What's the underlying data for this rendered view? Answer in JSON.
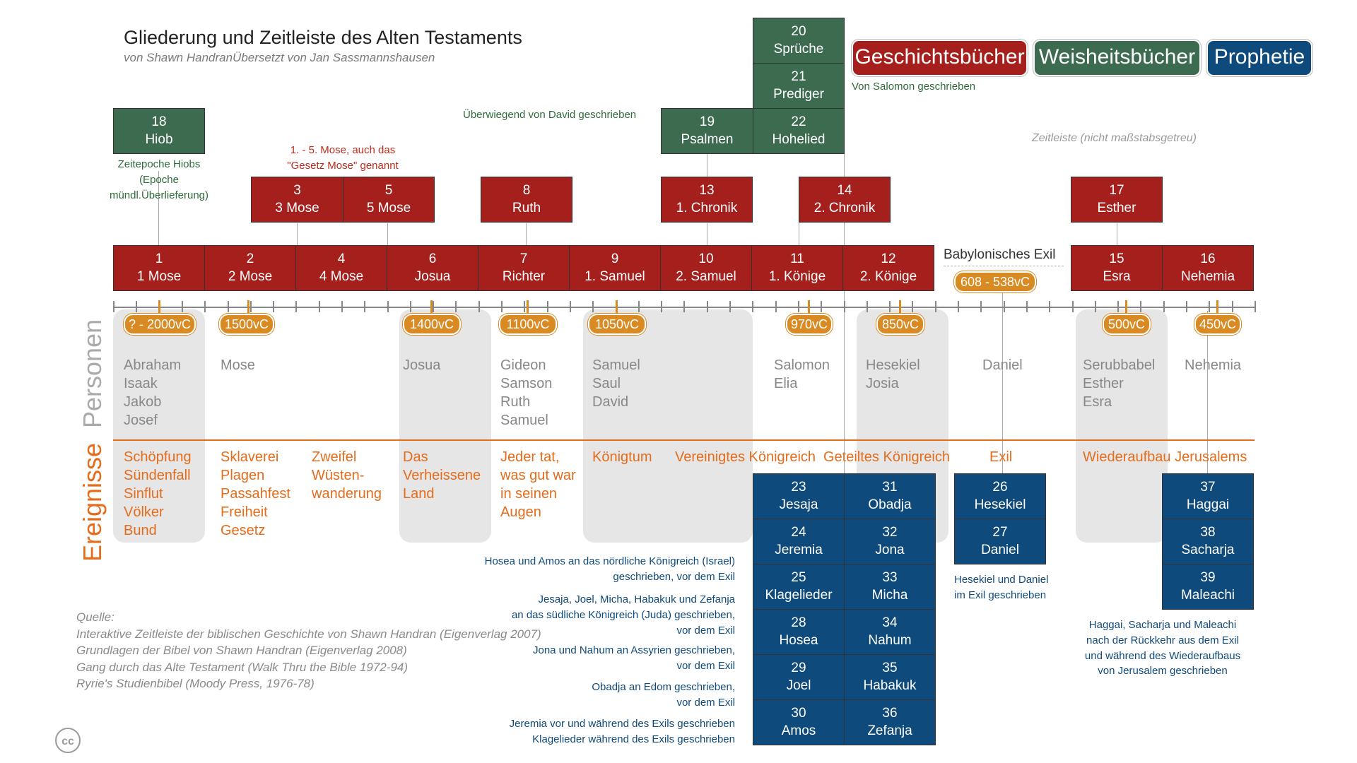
{
  "header": {
    "title": "Gliederung und Zeitleiste des Alten Testaments",
    "subtitle": "von Shawn HandranÜbersetzt von Jan Sassmannshausen"
  },
  "legend": {
    "history": "Geschichtsbücher",
    "wisdom": "Weisheitsbücher",
    "prophecy": "Prophetie",
    "solomon_note": "Von Salomon geschrieben"
  },
  "colors": {
    "history": "#a51f1d",
    "wisdom": "#3d6b4f",
    "prophecy": "#0e4a7b",
    "date": "#d98a23",
    "events": "#e46c1b",
    "persons": "#888888"
  },
  "notes": {
    "job_era": "Zeitepoche Hiobs\n(Epoche mündl.Überlieferung)",
    "moses": "1. - 5. Mose, auch das\n\"Gesetz Mose\" genannt",
    "david": "Überwiegend von David geschrieben",
    "timeline_scale": "Zeitleiste (nicht maßstabsgetreu)",
    "exile_label": "Babylonisches Exil",
    "hosea_amos": "Hosea und Amos an das nördliche Königreich (Israel)\ngeschrieben, vor dem Exil",
    "jesaja_group": "Jesaja, Joel, Micha, Habakuk und Zefanja\nan das südliche Königreich (Juda) geschrieben,\nvor dem Exil",
    "jona_nahum": "Jona und Nahum an Assyrien geschrieben,\nvor dem Exil",
    "obadja": "Obadja an Edom geschrieben,\nvor dem Exil",
    "jeremia": "Jeremia vor und während des Exils geschrieben\nKlagelieder während des Exils geschrieben",
    "hesekiel_daniel": "Hesekiel und Daniel\nim Exil geschrieben",
    "haggai_group": "Haggai, Sacharja und Maleachi\nnach der Rückkehr aus dem Exil\nund während des Wiederaufbaus\nvon Jerusalem geschrieben"
  },
  "sources": {
    "heading": "Quelle:",
    "items": [
      "Interaktive Zeitleiste der biblischen Geschichte von Shawn Handran (Eigenverlag 2007)",
      "Grundlagen der Bibel von Shawn Handran (Eigenverlag 2008)",
      "Gang durch das Alte Testament (Walk Thru the Bible 1972-94)",
      "Ryrie's Studienbibel (Moody Press, 1976-78)"
    ]
  },
  "license": "cc",
  "section_labels": {
    "persons": "Personen",
    "events": "Ereignisse"
  },
  "books": {
    "b18": {
      "num": "18",
      "name": "Hiob"
    },
    "b20": {
      "num": "20",
      "name": "Sprüche"
    },
    "b21": {
      "num": "21",
      "name": "Prediger"
    },
    "b19": {
      "num": "19",
      "name": "Psalmen"
    },
    "b22": {
      "num": "22",
      "name": "Hohelied"
    },
    "b3": {
      "num": "3",
      "name": "3 Mose"
    },
    "b5": {
      "num": "5",
      "name": "5 Mose"
    },
    "b8": {
      "num": "8",
      "name": "Ruth"
    },
    "b13": {
      "num": "13",
      "name": "1. Chronik"
    },
    "b14": {
      "num": "14",
      "name": "2. Chronik"
    },
    "b17": {
      "num": "17",
      "name": "Esther"
    },
    "b1": {
      "num": "1",
      "name": "1 Mose"
    },
    "b2": {
      "num": "2",
      "name": "2 Mose"
    },
    "b4": {
      "num": "4",
      "name": "4 Mose"
    },
    "b6": {
      "num": "6",
      "name": "Josua"
    },
    "b7": {
      "num": "7",
      "name": "Richter"
    },
    "b9": {
      "num": "9",
      "name": "1. Samuel"
    },
    "b10": {
      "num": "10",
      "name": "2. Samuel"
    },
    "b11": {
      "num": "11",
      "name": "1. Könige"
    },
    "b12": {
      "num": "12",
      "name": "2. Könige"
    },
    "b15": {
      "num": "15",
      "name": "Esra"
    },
    "b16": {
      "num": "16",
      "name": "Nehemia"
    },
    "b23": {
      "num": "23",
      "name": "Jesaja"
    },
    "b24": {
      "num": "24",
      "name": "Jeremia"
    },
    "b25": {
      "num": "25",
      "name": "Klagelieder"
    },
    "b28": {
      "num": "28",
      "name": "Hosea"
    },
    "b29": {
      "num": "29",
      "name": "Joel"
    },
    "b30": {
      "num": "30",
      "name": "Amos"
    },
    "b31": {
      "num": "31",
      "name": "Obadja"
    },
    "b32": {
      "num": "32",
      "name": "Jona"
    },
    "b33": {
      "num": "33",
      "name": "Micha"
    },
    "b34": {
      "num": "34",
      "name": "Nahum"
    },
    "b35": {
      "num": "35",
      "name": "Habakuk"
    },
    "b36": {
      "num": "36",
      "name": "Zefanja"
    },
    "b26": {
      "num": "26",
      "name": "Hesekiel"
    },
    "b27": {
      "num": "27",
      "name": "Daniel"
    },
    "b37": {
      "num": "37",
      "name": "Haggai"
    },
    "b38": {
      "num": "38",
      "name": "Sacharja"
    },
    "b39": {
      "num": "39",
      "name": "Maleachi"
    }
  },
  "dates": {
    "d1": "? - 2000vC",
    "d2": "1500vC",
    "d3": "1400vC",
    "d4": "1100vC",
    "d5": "1050vC",
    "d6": "970vC",
    "d7": "850vC",
    "d8": "500vC",
    "d9": "450vC",
    "exile": "608 - 538vC"
  },
  "persons": {
    "p1": "Abraham\nIsaak\nJakob\nJosef",
    "p2": "Mose",
    "p3": "Josua",
    "p4": "Gideon\nSamson\nRuth\nSamuel",
    "p5": "Samuel\nSaul\nDavid",
    "p6": "Salomon\nElia",
    "p7": "Hesekiel\nJosia",
    "p8": "Daniel",
    "p9": "Serubbabel\nEsther\nEsra",
    "p10": "Nehemia"
  },
  "events": {
    "e1": "Schöpfung\nSündenfall\nSinflut\nVölker\nBund",
    "e2": "Sklaverei\nPlagen\nPassahfest\nFreiheit\nGesetz",
    "e3": "Zweifel\nWüsten-\nwanderung",
    "e4": "Das\nVerheissene\nLand",
    "e5": "Jeder tat,\nwas gut war\nin seinen\nAugen",
    "e6": "Königtum",
    "e7": "Vereinigtes Königreich",
    "e8": "Geteiltes Königreich",
    "e9": "Exil",
    "e10": "Wiederaufbau Jerusalems"
  }
}
